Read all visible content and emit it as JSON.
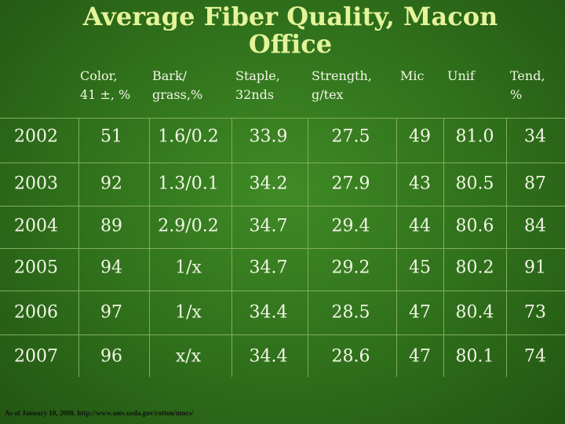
{
  "title": "Average Fiber Quality, Macon Office",
  "table": {
    "headers": [
      [
        "Color,",
        "41 ±, %"
      ],
      [
        "Bark/",
        "grass,%"
      ],
      [
        "Staple,",
        "32nds"
      ],
      [
        "Strength,",
        "g/tex"
      ],
      [
        "Mic"
      ],
      [
        "Unif"
      ],
      [
        "Tend,",
        "%"
      ]
    ],
    "rows": [
      [
        "2002",
        "51",
        "1.6/0.2",
        "33.9",
        "27.5",
        "49",
        "81.0",
        "34"
      ],
      [
        "2003",
        "92",
        "1.3/0.1",
        "34.2",
        "27.9",
        "43",
        "80.5",
        "87"
      ],
      [
        "2004",
        "89",
        "2.9/0.2",
        "34.7",
        "29.4",
        "44",
        "80.6",
        "84"
      ],
      [
        "2005",
        "94",
        "1/x",
        "34.7",
        "29.2",
        "45",
        "80.2",
        "91"
      ],
      [
        "2006",
        "97",
        "1/x",
        "34.4",
        "28.5",
        "47",
        "80.4",
        "73"
      ],
      [
        "2007",
        "96",
        "x/x",
        "34.4",
        "28.6",
        "47",
        "80.1",
        "74"
      ]
    ]
  },
  "footnote": "As of January 10, 2008. http://www.ams.usda.gov/cotton/mncs/"
}
